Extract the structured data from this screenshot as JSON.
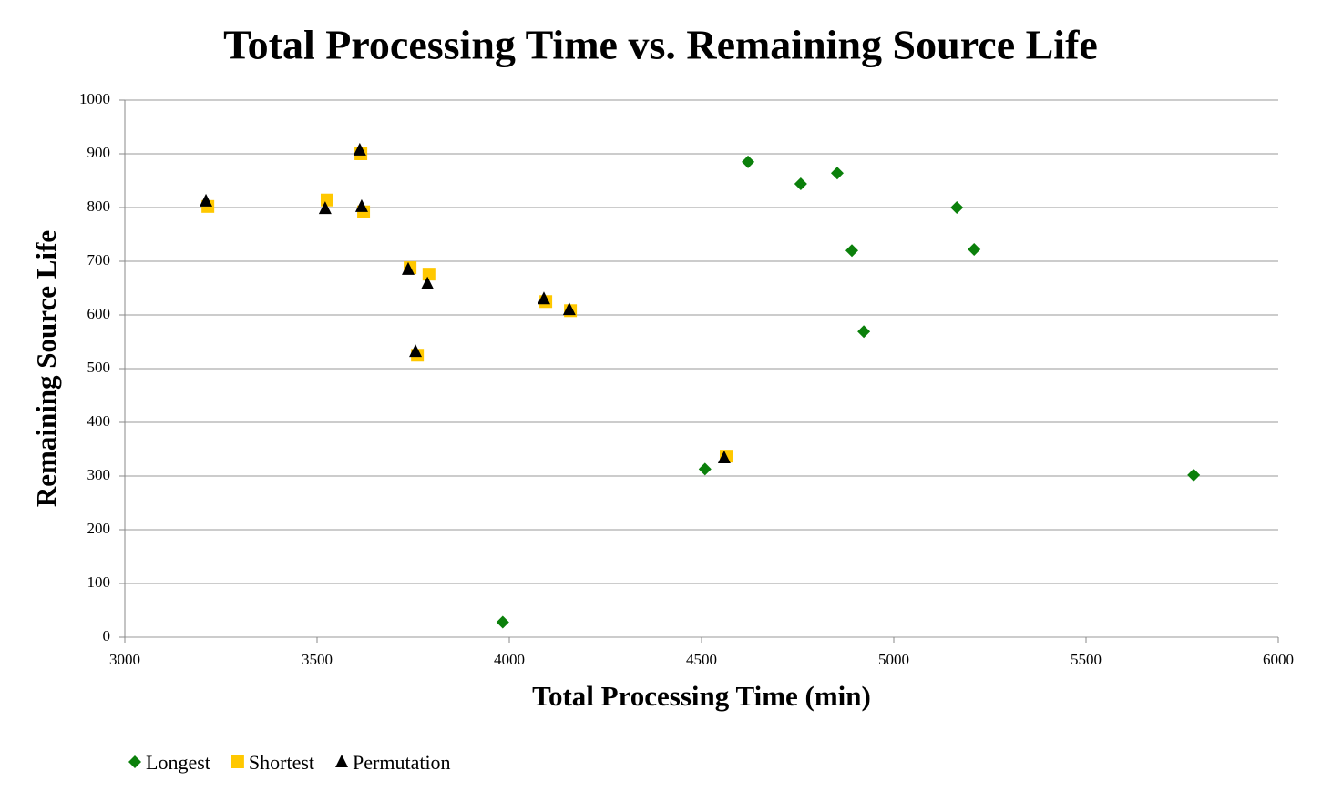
{
  "chart_data": {
    "type": "scatter",
    "title": "Total Processing Time vs. Remaining Source Life",
    "x_label": "Total Processing Time (min)",
    "y_label": "Remaining Source Life",
    "xlim": [
      3000,
      6000
    ],
    "xticks": [
      3000,
      3500,
      4000,
      4500,
      5000,
      5500,
      6000
    ],
    "ylim": [
      0,
      1000
    ],
    "yticks": [
      0,
      100,
      200,
      300,
      400,
      500,
      600,
      700,
      800,
      900,
      1000
    ],
    "grid": true,
    "legend": "bottom-left",
    "series": [
      {
        "name": "Longest",
        "color": "#0b800b",
        "marker": "diamond",
        "x": [
          3983,
          4509,
          4621,
          4758,
          4853,
          4891,
          4922,
          5164,
          5209,
          5780
        ],
        "values": [
          28,
          313,
          885,
          844,
          864,
          720,
          569,
          800,
          722,
          302
        ]
      },
      {
        "name": "Shortest",
        "color": "#ffc800",
        "marker": "square",
        "x": [
          3216,
          3526,
          3614,
          3621,
          3742,
          3791,
          3761,
          4095,
          4159,
          4564
        ],
        "values": [
          802,
          814,
          900,
          792,
          688,
          676,
          525,
          625,
          608,
          337
        ]
      },
      {
        "name": "Permutation",
        "color": "#000000",
        "marker": "triangle",
        "x": [
          3211,
          3521,
          3611,
          3616,
          3737,
          3787,
          3756,
          4090,
          4156,
          4559
        ],
        "values": [
          812,
          798,
          907,
          802,
          685,
          658,
          532,
          630,
          610,
          334
        ]
      }
    ]
  }
}
